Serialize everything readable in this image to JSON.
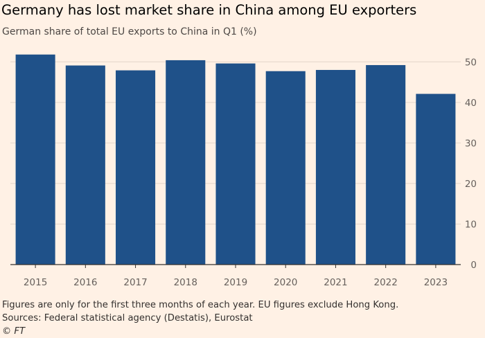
{
  "title": "Germany has lost market share in China among EU exporters",
  "subtitle": "German share of total EU exports to China in Q1 (%)",
  "notes": {
    "line1": "Figures are only for the first three months of each year. EU figures exclude Hong Kong.",
    "line2": "Sources: Federal statistical agency (Destatis), Eurostat",
    "credit": "© FT"
  },
  "colors": {
    "background": "#FFF1E5",
    "bar": "#1F5189",
    "grid": "#E3D6CA",
    "axis": "#33302E"
  },
  "chart_data": {
    "type": "bar",
    "title": "Germany has lost market share in China among EU exporters",
    "subtitle": "German share of total EU exports to China in Q1 (%)",
    "xlabel": "",
    "ylabel": "",
    "categories": [
      "2015",
      "2016",
      "2017",
      "2018",
      "2019",
      "2020",
      "2021",
      "2022",
      "2023"
    ],
    "values": [
      51.8,
      49.1,
      47.9,
      50.4,
      49.6,
      47.7,
      48.0,
      49.2,
      42.1
    ],
    "ylim": [
      0,
      55
    ],
    "yticks": [
      0,
      10,
      20,
      30,
      40,
      50
    ],
    "y_axis_position": "right",
    "grid": true
  }
}
